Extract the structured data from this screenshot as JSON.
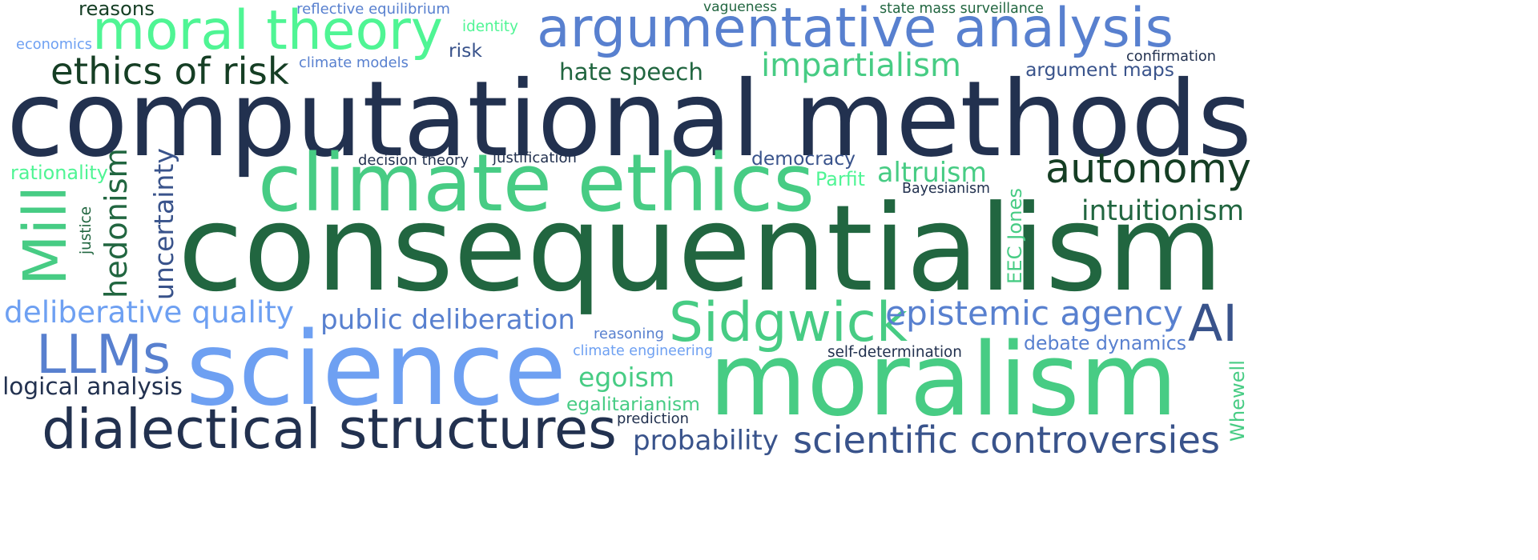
{
  "colors": {
    "navy": "#22314f",
    "dark_green": "#216640",
    "forest": "#153e24",
    "green": "#47cc84",
    "mint": "#4ff594",
    "blue": "#5880cf",
    "light_blue": "#6ea0f2",
    "slate": "#39538b"
  },
  "words": [
    {
      "text": "computational methods",
      "color": "navy"
    },
    {
      "text": "consequentialism",
      "color": "dark_green"
    },
    {
      "text": "science",
      "color": "light_blue"
    },
    {
      "text": "moralism",
      "color": "green"
    },
    {
      "text": "climate ethics",
      "color": "green"
    },
    {
      "text": "argumentative analysis",
      "color": "blue"
    },
    {
      "text": "moral theory",
      "color": "mint"
    },
    {
      "text": "dialectical structures",
      "color": "navy"
    },
    {
      "text": "scientific controversies",
      "color": "slate"
    },
    {
      "text": "Sidgwick",
      "color": "green"
    },
    {
      "text": "LLMs",
      "color": "blue"
    },
    {
      "text": "autonomy",
      "color": "forest"
    },
    {
      "text": "ethics of risk",
      "color": "forest"
    },
    {
      "text": "Mill",
      "color": "green"
    },
    {
      "text": "AI",
      "color": "slate"
    },
    {
      "text": "deliberative quality",
      "color": "light_blue"
    },
    {
      "text": "epistemic agency",
      "color": "blue"
    },
    {
      "text": "impartialism",
      "color": "green"
    },
    {
      "text": "public deliberation",
      "color": "blue"
    },
    {
      "text": "hedonism",
      "color": "dark_green"
    },
    {
      "text": "uncertainty",
      "color": "slate"
    },
    {
      "text": "intuitionism",
      "color": "dark_green"
    },
    {
      "text": "logical analysis",
      "color": "navy"
    },
    {
      "text": "probability",
      "color": "slate"
    },
    {
      "text": "hate speech",
      "color": "dark_green"
    },
    {
      "text": "altruism",
      "color": "green"
    },
    {
      "text": "egoism",
      "color": "green"
    },
    {
      "text": "argument maps",
      "color": "slate"
    },
    {
      "text": "democracy",
      "color": "slate"
    },
    {
      "text": "debate dynamics",
      "color": "blue"
    },
    {
      "text": "egalitarianism",
      "color": "green"
    },
    {
      "text": "rationality",
      "color": "mint"
    },
    {
      "text": "reasons",
      "color": "forest"
    },
    {
      "text": "risk",
      "color": "slate"
    },
    {
      "text": "EEC Jones",
      "color": "green"
    },
    {
      "text": "Whewell",
      "color": "green"
    },
    {
      "text": "reflective equilibrium",
      "color": "blue"
    },
    {
      "text": "state mass surveillance",
      "color": "dark_green"
    },
    {
      "text": "vagueness",
      "color": "dark_green"
    },
    {
      "text": "identity",
      "color": "mint"
    },
    {
      "text": "economics",
      "color": "light_blue"
    },
    {
      "text": "climate models",
      "color": "blue"
    },
    {
      "text": "confirmation",
      "color": "navy"
    },
    {
      "text": "decision theory",
      "color": "navy"
    },
    {
      "text": "justification",
      "color": "navy"
    },
    {
      "text": "Parfit",
      "color": "mint"
    },
    {
      "text": "Bayesianism",
      "color": "navy"
    },
    {
      "text": "justice",
      "color": "dark_green"
    },
    {
      "text": "reasoning",
      "color": "blue"
    },
    {
      "text": "climate engineering",
      "color": "light_blue"
    },
    {
      "text": "self-determination",
      "color": "navy"
    },
    {
      "text": "prediction",
      "color": "navy"
    }
  ]
}
